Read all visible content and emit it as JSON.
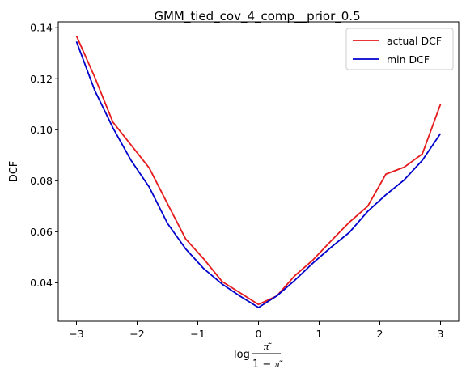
{
  "chart_data": {
    "type": "line",
    "title": "GMM_tied_cov_4_comp__prior_0.5",
    "xlabel": {
      "prefix": "log",
      "numerator": "π͂",
      "denominator_left": "1 − ",
      "denominator_right": "π͂"
    },
    "ylabel": "DCF",
    "xlim": [
      -3.3,
      3.3
    ],
    "ylim": [
      0.0249,
      0.1423
    ],
    "xticks": [
      -3,
      -2,
      -1,
      0,
      1,
      2,
      3
    ],
    "xtick_labels": [
      "−3",
      "−2",
      "−1",
      "0",
      "1",
      "2",
      "3"
    ],
    "yticks": [
      0.04,
      0.06,
      0.08,
      0.1,
      0.12,
      0.14
    ],
    "ytick_labels": [
      "0.04",
      "0.06",
      "0.08",
      "0.10",
      "0.12",
      "0.14"
    ],
    "x": [
      -3.0,
      -2.7,
      -2.4,
      -2.1,
      -1.8,
      -1.5,
      -1.2,
      -0.9,
      -0.6,
      -0.3,
      0.0,
      0.3,
      0.6,
      0.9,
      1.2,
      1.5,
      1.8,
      2.1,
      2.4,
      2.7,
      3.0
    ],
    "series": [
      {
        "name": "actual DCF",
        "color": "#e41a1c",
        "values": [
          0.1368,
          0.1207,
          0.103,
          0.094,
          0.085,
          0.071,
          0.0572,
          0.0493,
          0.0405,
          0.036,
          0.0315,
          0.0348,
          0.0428,
          0.049,
          0.0565,
          0.0638,
          0.07,
          0.0826,
          0.0853,
          0.0905,
          0.11
        ]
      },
      {
        "name": "min DCF",
        "color": "#0000cc",
        "values": [
          0.1346,
          0.1155,
          0.1008,
          0.088,
          0.0775,
          0.0633,
          0.0533,
          0.0455,
          0.0395,
          0.0347,
          0.0303,
          0.0348,
          0.041,
          0.0478,
          0.054,
          0.0598,
          0.068,
          0.0745,
          0.0803,
          0.088,
          0.0985
        ]
      }
    ],
    "grid": false,
    "legend_position": "top-right"
  }
}
